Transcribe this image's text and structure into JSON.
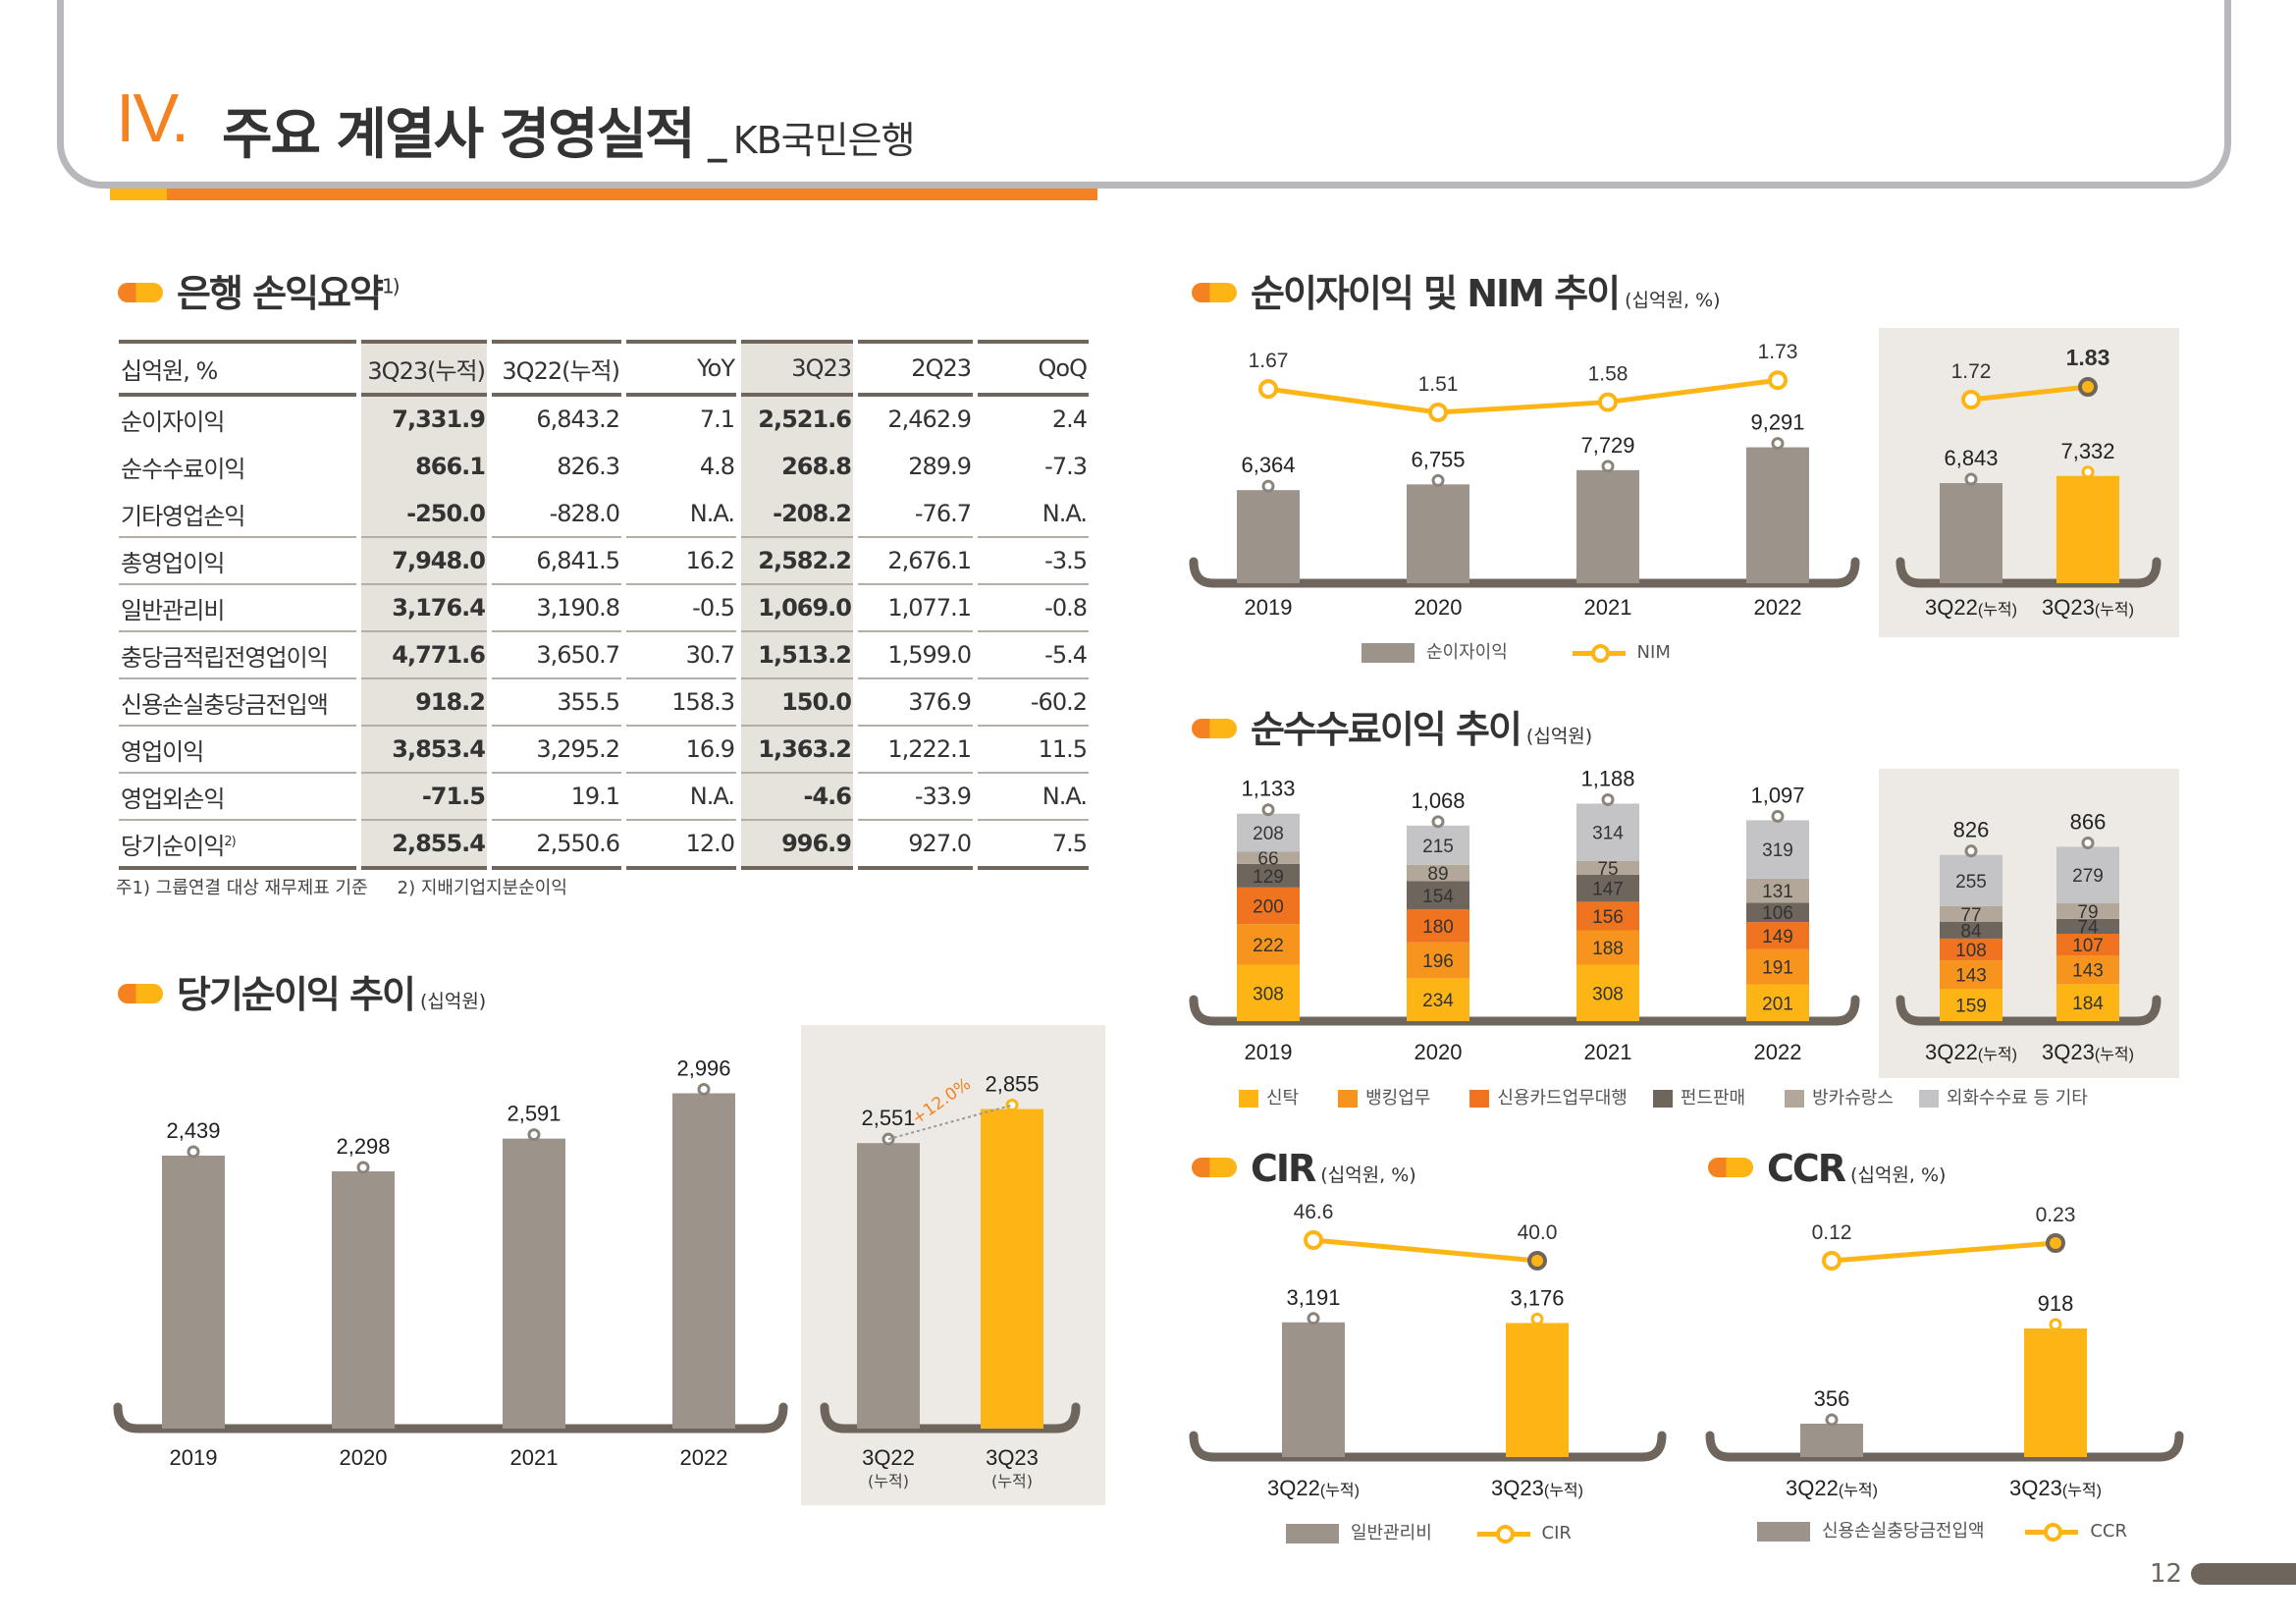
{
  "header": {
    "roman": "IV.",
    "title": "주요 계열사 경영실적",
    "separator": "_",
    "subtitle": "KB국민은행"
  },
  "summary": {
    "title": "은행 손익요약",
    "title_sup": "1)",
    "columns": [
      "십억원, %",
      "3Q23(누적)",
      "3Q22(누적)",
      "YoY",
      "3Q23",
      "2Q23",
      "QoQ"
    ],
    "rows": [
      {
        "label": "순이자이익",
        "sup": "",
        "values": [
          "7,331.9",
          "6,843.2",
          "7.1",
          "2,521.6",
          "2,462.9",
          "2.4"
        ]
      },
      {
        "label": "순수수료이익",
        "sup": "",
        "values": [
          "866.1",
          "826.3",
          "4.8",
          "268.8",
          "289.9",
          "-7.3"
        ]
      },
      {
        "label": "기타영업손익",
        "sup": "",
        "values": [
          "-250.0",
          "-828.0",
          "N.A.",
          "-208.2",
          "-76.7",
          "N.A."
        ]
      },
      {
        "label": "총영업이익",
        "sup": "",
        "values": [
          "7,948.0",
          "6,841.5",
          "16.2",
          "2,582.2",
          "2,676.1",
          "-3.5"
        ]
      },
      {
        "label": "일반관리비",
        "sup": "",
        "values": [
          "3,176.4",
          "3,190.8",
          "-0.5",
          "1,069.0",
          "1,077.1",
          "-0.8"
        ]
      },
      {
        "label": "충당금적립전영업이익",
        "sup": "",
        "values": [
          "4,771.6",
          "3,650.7",
          "30.7",
          "1,513.2",
          "1,599.0",
          "-5.4"
        ]
      },
      {
        "label": "신용손실충당금전입액",
        "sup": "",
        "values": [
          "918.2",
          "355.5",
          "158.3",
          "150.0",
          "376.9",
          "-60.2"
        ]
      },
      {
        "label": "영업이익",
        "sup": "",
        "values": [
          "3,853.4",
          "3,295.2",
          "16.9",
          "1,363.2",
          "1,222.1",
          "11.5"
        ]
      },
      {
        "label": "영업외손익",
        "sup": "",
        "values": [
          "-71.5",
          "19.1",
          "N.A.",
          "-4.6",
          "-33.9",
          "N.A."
        ]
      },
      {
        "label": "당기순이익",
        "sup": "2)",
        "values": [
          "2,855.4",
          "2,550.6",
          "12.0",
          "996.9",
          "927.0",
          "7.5"
        ]
      }
    ],
    "footnote1": "주1) 그룹연결 대상 재무제표 기준",
    "footnote2": "2) 지배기업지분순이익"
  },
  "sections": {
    "net_income": {
      "title": "당기순이익 추이",
      "unit": "(십억원)"
    },
    "nii": {
      "title": "순이자이익 및 NIM 추이",
      "unit": "(십억원, %)"
    },
    "fee": {
      "title": "순수수료이익 추이",
      "unit": "(십억원)"
    },
    "cir": {
      "title": "CIR",
      "unit": "(십억원, %)"
    },
    "ccr": {
      "title": "CCR",
      "unit": "(십억원, %)"
    }
  },
  "page_number": "12",
  "colors": {
    "orange": "#F58220",
    "yellow": "#FDB515",
    "bar_gray": "#9C948A",
    "dark": "#6E655C",
    "panel": "#EDEAE5"
  },
  "chart_data": [
    {
      "id": "net_income",
      "type": "bar",
      "title": "당기순이익 추이",
      "unit": "십억원",
      "categories": [
        "2019",
        "2020",
        "2021",
        "2022",
        "3Q22(누적)",
        "3Q23(누적)"
      ],
      "values": [
        2439,
        2298,
        2591,
        2996,
        2551,
        2855
      ],
      "value_labels": [
        "2,439",
        "2,298",
        "2,591",
        "2,996",
        "2,551",
        "2,855"
      ],
      "highlight": [
        false,
        false,
        false,
        false,
        false,
        true
      ],
      "annotation": "+12.0%"
    },
    {
      "id": "nii",
      "type": "bar",
      "title": "순이자이익 및 NIM 추이",
      "unit": "십억원, %",
      "categories": [
        "2019",
        "2020",
        "2021",
        "2022",
        "3Q22(누적)",
        "3Q23(누적)"
      ],
      "series": [
        {
          "name": "순이자이익",
          "type": "bar",
          "values": [
            6364,
            6755,
            7729,
            9291,
            6843,
            7332
          ],
          "labels": [
            "6,364",
            "6,755",
            "7,729",
            "9,291",
            "6,843",
            "7,332"
          ]
        },
        {
          "name": "NIM",
          "type": "line",
          "values": [
            1.67,
            1.51,
            1.58,
            1.73,
            1.72,
            1.83
          ],
          "labels": [
            "1.67",
            "1.51",
            "1.58",
            "1.73",
            "1.72",
            "1.83"
          ]
        }
      ],
      "highlight": [
        false,
        false,
        false,
        false,
        false,
        true
      ],
      "legend": [
        "순이자이익",
        "NIM"
      ]
    },
    {
      "id": "fee",
      "type": "bar",
      "stacked": true,
      "title": "순수수료이익 추이",
      "unit": "십억원",
      "categories": [
        "2019",
        "2020",
        "2021",
        "2022",
        "3Q22(누적)",
        "3Q23(누적)"
      ],
      "series": [
        {
          "name": "신탁",
          "color": "#FDB515",
          "values": [
            308,
            234,
            308,
            201,
            159,
            184
          ]
        },
        {
          "name": "뱅킹업무",
          "color": "#F7941D",
          "values": [
            222,
            196,
            188,
            191,
            143,
            143
          ]
        },
        {
          "name": "신용카드업무대행",
          "color": "#F0731F",
          "values": [
            200,
            180,
            156,
            149,
            108,
            107
          ]
        },
        {
          "name": "펀드판매",
          "color": "#6E655C",
          "values": [
            129,
            154,
            147,
            106,
            84,
            74
          ]
        },
        {
          "name": "방카슈랑스",
          "color": "#B3A79A",
          "values": [
            66,
            89,
            75,
            131,
            77,
            79
          ]
        },
        {
          "name": "외화수수료 등 기타",
          "color": "#C4C4C6",
          "values": [
            208,
            215,
            314,
            319,
            255,
            279
          ]
        }
      ],
      "totals": [
        1133,
        1068,
        1188,
        1097,
        826,
        866
      ],
      "total_labels": [
        "1,133",
        "1,068",
        "1,188",
        "1,097",
        "826",
        "866"
      ]
    },
    {
      "id": "cir",
      "type": "bar",
      "title": "CIR",
      "unit": "십억원, %",
      "categories": [
        "3Q22(누적)",
        "3Q23(누적)"
      ],
      "series": [
        {
          "name": "일반관리비",
          "type": "bar",
          "values": [
            3191,
            3176
          ],
          "labels": [
            "3,191",
            "3,176"
          ]
        },
        {
          "name": "CIR",
          "type": "line",
          "values": [
            46.6,
            40.0
          ],
          "labels": [
            "46.6",
            "40.0"
          ]
        }
      ],
      "highlight": [
        false,
        true
      ],
      "legend": [
        "일반관리비",
        "CIR"
      ]
    },
    {
      "id": "ccr",
      "type": "bar",
      "title": "CCR",
      "unit": "십억원, %",
      "categories": [
        "3Q22(누적)",
        "3Q23(누적)"
      ],
      "series": [
        {
          "name": "신용손실충당금전입액",
          "type": "bar",
          "values": [
            356,
            918
          ],
          "labels": [
            "356",
            "918"
          ]
        },
        {
          "name": "CCR",
          "type": "line",
          "values": [
            0.12,
            0.23
          ],
          "labels": [
            "0.12",
            "0.23"
          ]
        }
      ],
      "highlight": [
        false,
        true
      ],
      "legend": [
        "신용손실충당금전입액",
        "CCR"
      ]
    }
  ]
}
